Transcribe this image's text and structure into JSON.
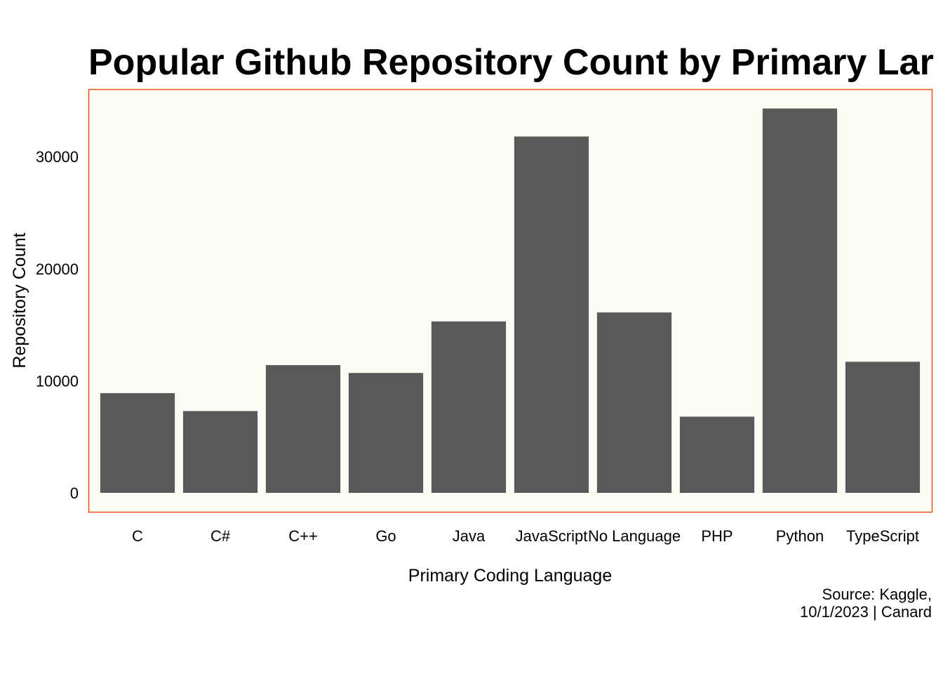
{
  "chart_data": {
    "type": "bar",
    "title": "Popular Github Repository Count by Primary Lar",
    "xlabel": "Primary Coding Language",
    "ylabel": "Repository Count",
    "caption_lines": [
      "Source: Kaggle,",
      "10/1/2023 | Canard"
    ],
    "categories": [
      "C",
      "C#",
      "C++",
      "Go",
      "Java",
      "JavaScript",
      "No Language",
      "PHP",
      "Python",
      "TypeScript"
    ],
    "values": [
      8900,
      7300,
      11400,
      10700,
      15300,
      31800,
      16100,
      6800,
      34300,
      11700
    ],
    "ylim": [
      0,
      35900
    ],
    "yticks": [
      0,
      10000,
      20000,
      30000
    ],
    "ytick_labels": [
      "0",
      "10000",
      "20000",
      "30000"
    ],
    "grid": false,
    "legend": "none",
    "colors": {
      "bar": "#595959",
      "panel_background": "#fcfbf4",
      "panel_border": "#e8501e",
      "page_background": "#ffffff"
    }
  }
}
